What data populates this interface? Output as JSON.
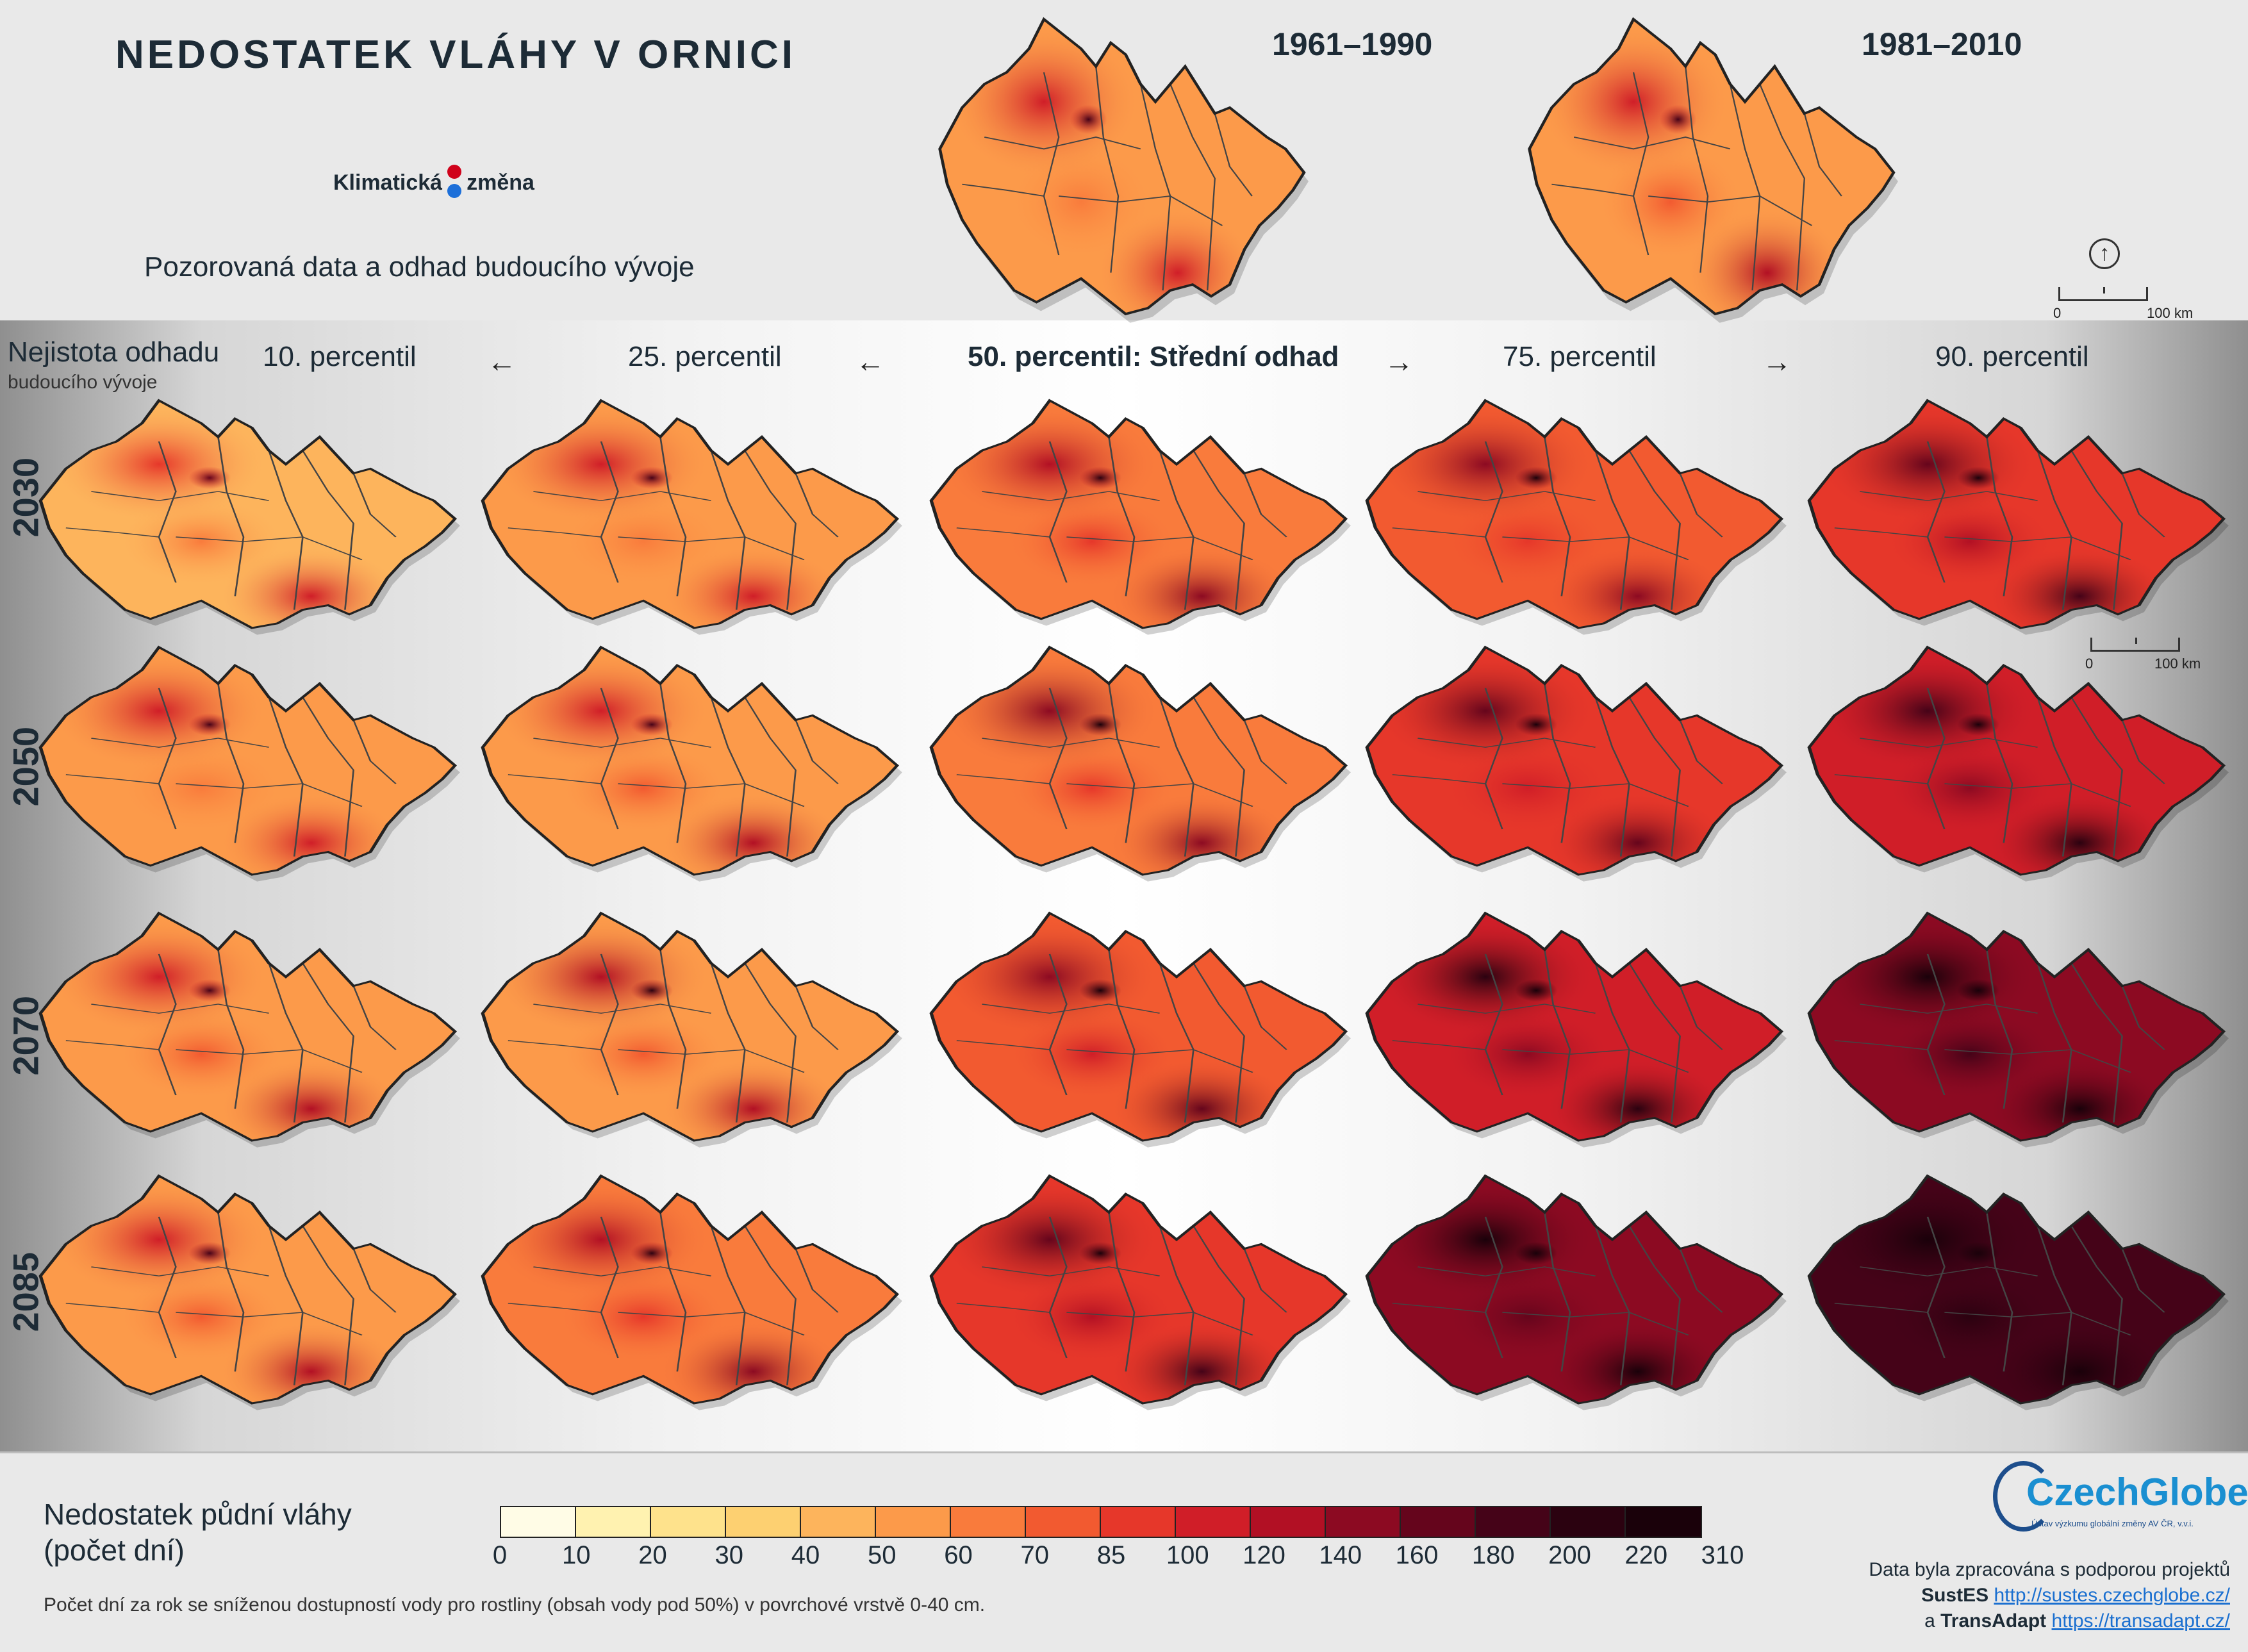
{
  "header": {
    "title": "NEDOSTATEK VLÁHY V ORNICI",
    "brand_left": "Klimatická",
    "brand_right": "změna",
    "subtitle": "Pozorovaná data a odhad budoucího vývoje"
  },
  "observed": {
    "periods": [
      "1961–1990",
      "1981–2010"
    ],
    "intensity": [
      0.3,
      0.33
    ]
  },
  "scale": {
    "zero": "0",
    "label": "100 km"
  },
  "uncertainty": {
    "title": "Nejistota odhadu",
    "subtitle": "budoucího vývoje",
    "percentiles": [
      "10. percentil",
      "25. percentil",
      "50. percentil: Střední odhad",
      "75. percentil",
      "90. percentil"
    ],
    "arrows": [
      "←",
      "←",
      "→",
      "→"
    ]
  },
  "grid": {
    "years": [
      "2030",
      "2050",
      "2070",
      "2085"
    ],
    "intensity": [
      [
        0.28,
        0.3,
        0.38,
        0.44,
        0.52
      ],
      [
        0.3,
        0.32,
        0.42,
        0.5,
        0.6
      ],
      [
        0.32,
        0.36,
        0.48,
        0.62,
        0.74
      ],
      [
        0.34,
        0.38,
        0.52,
        0.7,
        0.84
      ]
    ]
  },
  "legend": {
    "title_line1": "Nedostatek půdní vláhy",
    "title_line2": "(počet dní)",
    "colors": [
      "#fffce6",
      "#fff2b0",
      "#fee28c",
      "#fdd071",
      "#fdb45c",
      "#fc9a4a",
      "#f97b3c",
      "#f25a30",
      "#e6372a",
      "#d01e28",
      "#b21024",
      "#8c0a22",
      "#65051c",
      "#450318",
      "#2b0210",
      "#1a010a"
    ],
    "ticks": [
      "0",
      "10",
      "20",
      "30",
      "40",
      "50",
      "60",
      "70",
      "85",
      "100",
      "120",
      "140",
      "160",
      "180",
      "200",
      "220",
      "310"
    ],
    "footnote": "Počet dní za rok se sníženou dostupností vody pro rostliny (obsah vody pod 50%) v povrchové vrstvě 0-40 cm."
  },
  "footer": {
    "logo_name": "CzechGlobe",
    "logo_tagline": "Ústav výzkumu globální změny AV ČR, v.v.i.",
    "credit_line": "Data byla zpracována s podporou projektů",
    "project1_name": "SustES",
    "project1_url": "http://sustes.czechglobe.cz/",
    "and_word": "a",
    "project2_name": "TransAdapt",
    "project2_url": "https://transadapt.cz/"
  }
}
